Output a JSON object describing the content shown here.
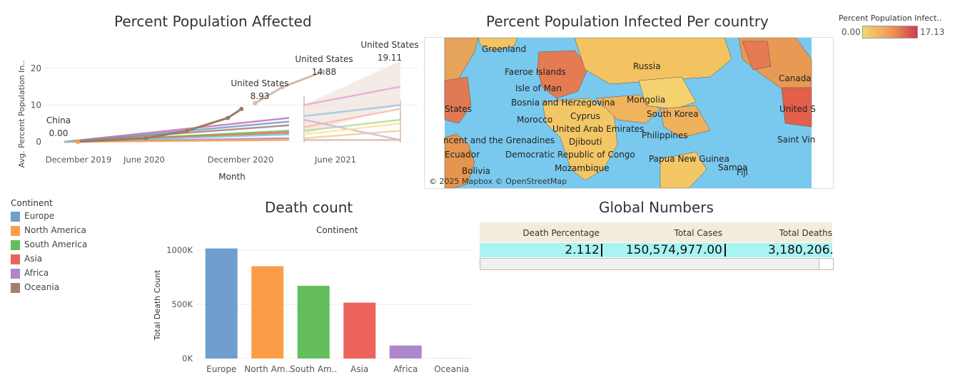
{
  "line_panel": {
    "title": "Percent Population Affected",
    "ylabel": "Avg. Percent Population In..",
    "xlabel": "Month",
    "annotations": [
      {
        "name": "China",
        "value": "0.00"
      },
      {
        "name": "United States",
        "value": "8.93"
      },
      {
        "name": "United States",
        "value": "14.88"
      },
      {
        "name": "United States",
        "value": "19.11"
      }
    ]
  },
  "map_panel": {
    "title": "Percent Population Infected Per country",
    "attribution": "© 2025 Mapbox © OpenStreetMap",
    "labels": [
      "Greenland",
      "Russia",
      "Canada",
      "Faeroe Islands",
      "Isle of Man",
      "Bosnia and Herzegovina",
      "Mongolia",
      "States",
      "United S",
      "Cyprus",
      "South Korea",
      "Morocco",
      "United Arab Emirates",
      "Philippines",
      "ncent and the Grenadines",
      "Saint Vin",
      "Djibouti",
      "Ecuador",
      "Democratic Republic of Congo",
      "Papua New Guinea",
      "Samoa",
      "Fiji",
      "Mozambique",
      "Bolivia"
    ],
    "legend": {
      "title": "Percent Population Infect..",
      "min": "0.00",
      "max": "17.13"
    }
  },
  "continent_legend": {
    "title": "Continent",
    "items": [
      {
        "label": "Europe",
        "color": "#6f9ecf"
      },
      {
        "label": "North America",
        "color": "#fb9d48"
      },
      {
        "label": "South America",
        "color": "#63bd5b"
      },
      {
        "label": "Asia",
        "color": "#ec625c"
      },
      {
        "label": "Africa",
        "color": "#ac88c8"
      },
      {
        "label": "Oceania",
        "color": "#a67d71"
      }
    ]
  },
  "death_panel": {
    "title": "Death count",
    "top_label": "Continent",
    "ylabel": "Total Death Count"
  },
  "global_panel": {
    "title": "Global Numbers",
    "headers": [
      "Death Percentage",
      "Total Cases",
      "Total Deaths"
    ],
    "values": [
      "2.112",
      "150,574,977.00",
      "3,180,206.("
    ]
  },
  "chart_data": [
    {
      "type": "line",
      "title": "Percent Population Affected",
      "xlabel": "Month",
      "ylabel": "Avg. Percent Population In..",
      "x_ticks": [
        "December 2019",
        "June 2020",
        "December 2020",
        "June 2021"
      ],
      "y_ticks": [
        0,
        10,
        20
      ],
      "ylim": [
        0,
        25
      ],
      "series": [
        {
          "name": "United States",
          "color": "#9b7a62",
          "x": [
            "2020-01",
            "2020-06",
            "2020-09",
            "2020-12",
            "2021-01"
          ],
          "values": [
            0.0,
            1.0,
            3.0,
            6.5,
            8.93
          ]
        },
        {
          "name": "United States",
          "color": "#d8b9ab",
          "x": [
            "2021-02",
            "2021-04",
            "2021-07"
          ],
          "values": [
            10.5,
            14.88,
            19.11
          ]
        },
        {
          "name": "China",
          "color": "#fb9d48",
          "x": [
            "2020-01"
          ],
          "values": [
            0.0
          ]
        }
      ]
    },
    {
      "type": "bar",
      "title": "Death count",
      "xlabel": "Continent",
      "ylabel": "Total Death Count",
      "categories": [
        "Europe",
        "North Am..",
        "South Am..",
        "Asia",
        "Africa",
        "Oceania"
      ],
      "values": [
        1016750,
        853000,
        672000,
        516000,
        120000,
        1000
      ],
      "colors": [
        "#6f9ecf",
        "#fb9d48",
        "#63bd5b",
        "#ec625c",
        "#ac88c8",
        "#a67d71"
      ],
      "y_ticks": [
        "0K",
        "500K",
        "1000K"
      ],
      "ylim": [
        0,
        1100000
      ]
    }
  ]
}
